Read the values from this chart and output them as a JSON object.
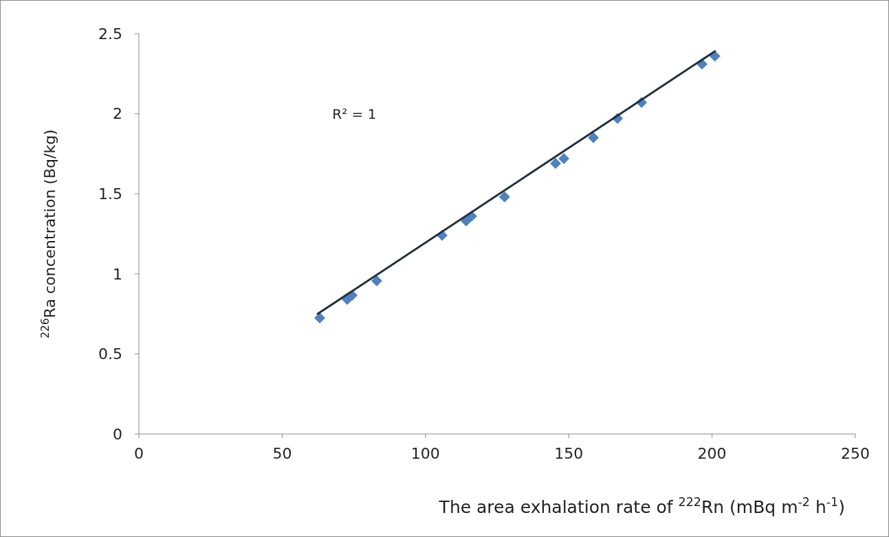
{
  "chart_data": {
    "type": "scatter",
    "xlabel": "The area exhalation rate of $^{222}$Rn (mBq m$^{-2}$ h$^{-1}$)",
    "ylabel": "$^{226}$Ra concentration (Bq/kg)",
    "annotations": [
      "R² = 1"
    ],
    "xlim": [
      0,
      250
    ],
    "xticks": [
      0,
      50,
      100,
      150,
      200,
      250
    ],
    "ylim": [
      0,
      2.5
    ],
    "yticks": [
      0,
      0.5,
      1,
      1.5,
      2,
      2.5
    ],
    "grid": false,
    "series": [
      {
        "color": "#4f81bd",
        "marker": "diamond",
        "x": [
          63.1,
          72.7,
          74.4,
          83,
          105.8,
          114.2,
          116.1,
          127.6,
          145.4,
          148.3,
          158.6,
          167,
          175.4,
          196.5,
          201
        ],
        "values": [
          0.725,
          0.84,
          0.866,
          0.956,
          1.24,
          1.33,
          1.36,
          1.48,
          1.69,
          1.72,
          1.85,
          1.97,
          2.07,
          2.31,
          2.36
        ]
      },
      {
        "type": "line",
        "color": "#1f2f3f",
        "x": [
          62.4,
          201
        ],
        "values": [
          0.75,
          2.39
        ]
      }
    ]
  }
}
